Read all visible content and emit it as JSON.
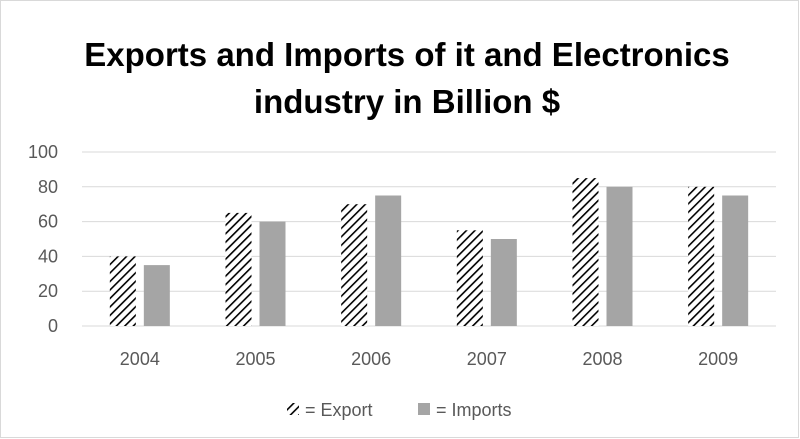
{
  "chart_data": {
    "type": "bar",
    "title_line1": "Exports and Imports of it and Electronics",
    "title_line2": "industry in Billion $",
    "categories": [
      "2004",
      "2005",
      "2006",
      "2007",
      "2008",
      "2009"
    ],
    "series": [
      {
        "name": "= Export",
        "values": [
          40,
          65,
          70,
          55,
          85,
          80
        ],
        "pattern": "diagonal-hatch",
        "color": "#000000"
      },
      {
        "name": "= Imports",
        "values": [
          35,
          60,
          75,
          50,
          80,
          75
        ],
        "color": "#a5a5a5"
      }
    ],
    "ylim": [
      0,
      100
    ],
    "yticks": [
      "0",
      "20",
      "40",
      "60",
      "80",
      "100"
    ],
    "grid": true,
    "legend": "bottom-center"
  }
}
